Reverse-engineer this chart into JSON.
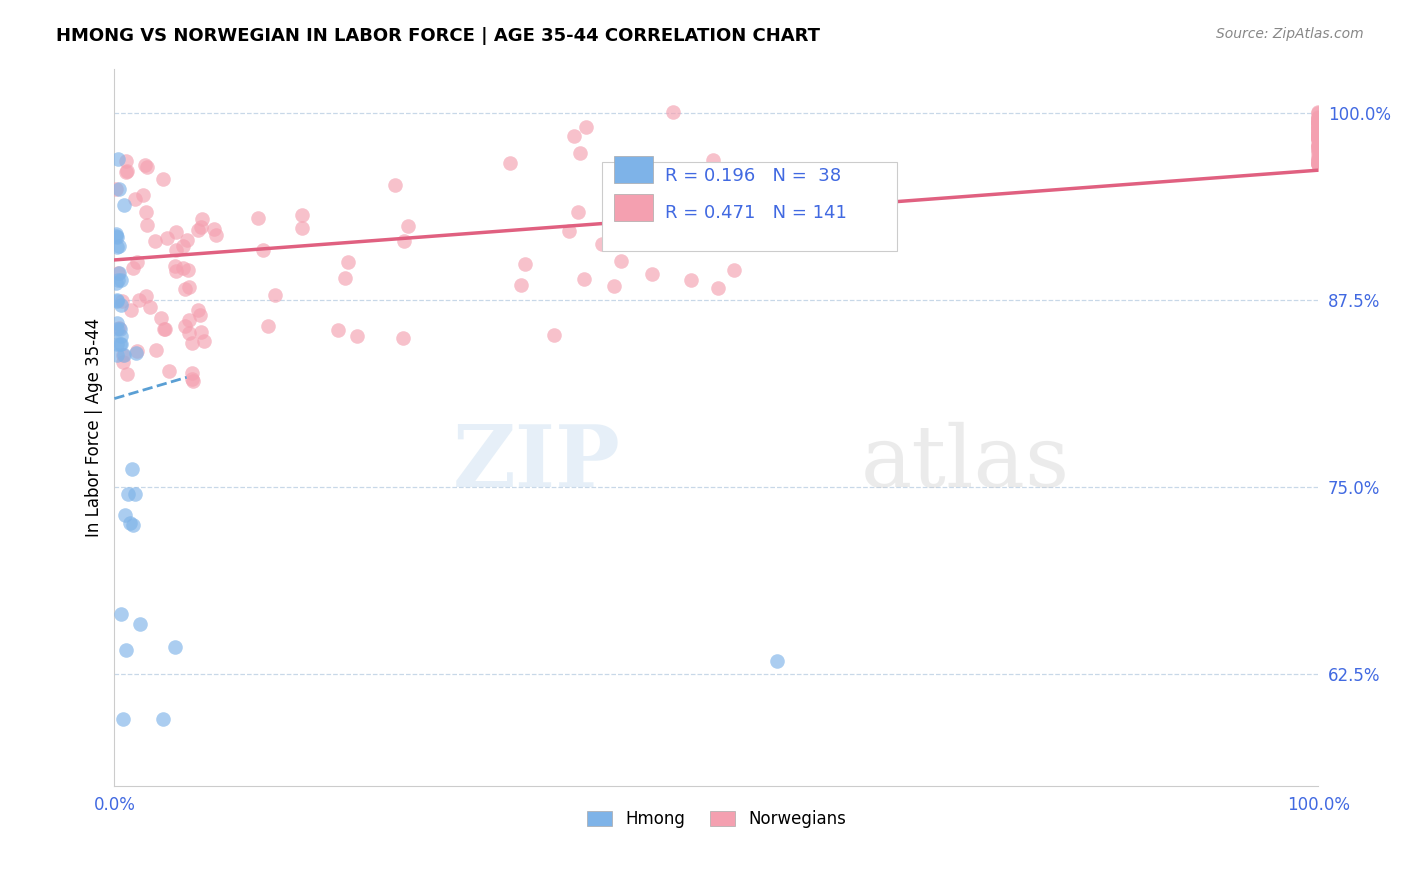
{
  "title": "HMONG VS NORWEGIAN IN LABOR FORCE | AGE 35-44 CORRELATION CHART",
  "source": "Source: ZipAtlas.com",
  "ylabel": "In Labor Force | Age 35-44",
  "xlim": [
    0.0,
    1.0
  ],
  "ylim": [
    0.55,
    1.03
  ],
  "yticks": [
    0.625,
    0.75,
    0.875,
    1.0
  ],
  "ytick_labels": [
    "62.5%",
    "75.0%",
    "87.5%",
    "100.0%"
  ],
  "xtick_labels": [
    "0.0%",
    "100.0%"
  ],
  "hmong_color": "#7eb3e8",
  "norwegian_color": "#f4a0b0",
  "hmong_R": 0.196,
  "hmong_N": 38,
  "norwegian_R": 0.471,
  "norwegian_N": 141,
  "hmong_line_color": "#5a9fd4",
  "norwegian_line_color": "#e06080",
  "legend_label_hmong": "Hmong",
  "legend_label_norwegian": "Norwegians",
  "watermark_zip": "ZIP",
  "watermark_atlas": "atlas",
  "tick_color": "#4169e1",
  "grid_color": "#c8d8e8",
  "title_fontsize": 13,
  "source_fontsize": 10,
  "tick_fontsize": 12
}
